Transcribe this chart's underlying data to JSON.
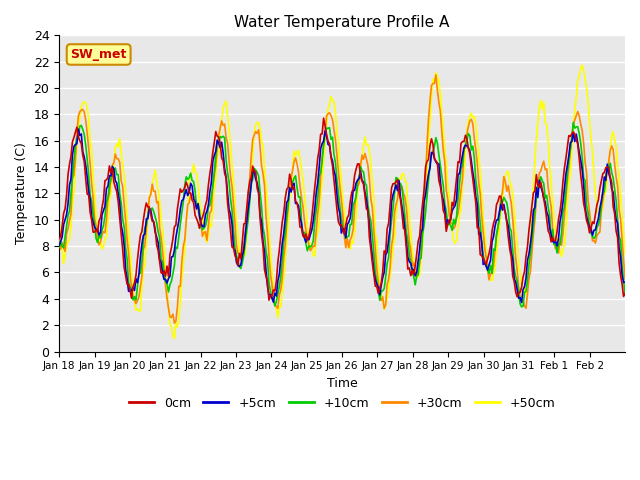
{
  "title": "Water Temperature Profile A",
  "xlabel": "Time",
  "ylabel": "Temperature (C)",
  "ylim": [
    0,
    24
  ],
  "yticks": [
    0,
    2,
    4,
    6,
    8,
    10,
    12,
    14,
    16,
    18,
    20,
    22,
    24
  ],
  "xtick_labels": [
    "Jan 18",
    "Jan 19",
    "Jan 20",
    "Jan 21",
    "Jan 22",
    "Jan 23",
    "Jan 24",
    "Jan 25",
    "Jan 26",
    "Jan 27",
    "Jan 28",
    "Jan 29",
    "Jan 30",
    "Jan 31",
    "Feb 1",
    "Feb 2"
  ],
  "colors": {
    "0cm": "#cc0000",
    "+5cm": "#0000cc",
    "+10cm": "#00cc00",
    "+30cm": "#ff8800",
    "+50cm": "#ffff00"
  },
  "annotation_text": "SW_met",
  "annotation_bg": "#ffff99",
  "annotation_border": "#cc8800",
  "annotation_text_color": "#cc0000",
  "plot_bg": "#e8e8e8",
  "fig_bg": "#ffffff",
  "grid_color": "#ffffff",
  "linewidth": 1.2
}
